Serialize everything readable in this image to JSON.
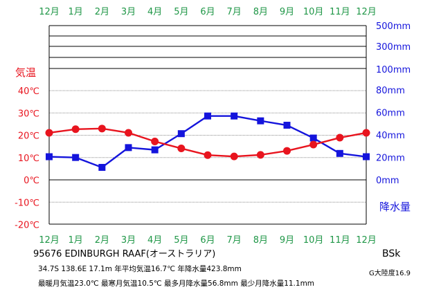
{
  "chart_data": {
    "type": "line",
    "months": [
      "12月",
      "1月",
      "2月",
      "3月",
      "4月",
      "5月",
      "6月",
      "7月",
      "8月",
      "9月",
      "10月",
      "11月",
      "12月"
    ],
    "left_axis": {
      "title": "気温",
      "ticks": [
        "40℃",
        "30℃",
        "20℃",
        "10℃",
        "0℃",
        "-10℃",
        "-20℃"
      ],
      "ylim": [
        -20,
        40
      ]
    },
    "right_axis": {
      "title": "降水量",
      "linear_ticks": [
        "80mm",
        "60mm",
        "40mm",
        "20mm",
        "0mm"
      ],
      "linear_range": [
        0,
        80
      ],
      "compressed_ticks": [
        "500mm",
        "300mm",
        "100mm"
      ]
    },
    "series": [
      {
        "name": "気温",
        "color": "#e8141e",
        "marker": "circle",
        "axis": "left",
        "values": [
          21.1,
          22.7,
          23.0,
          21.1,
          17.2,
          14.1,
          11.1,
          10.5,
          11.2,
          13.0,
          15.8,
          18.9,
          21.1
        ]
      },
      {
        "name": "降水量",
        "color": "#1414dc",
        "marker": "square",
        "axis": "right",
        "values": [
          20.6,
          19.9,
          11.1,
          28.7,
          26.7,
          41.1,
          56.8,
          56.8,
          52.5,
          48.6,
          37.2,
          23.5,
          20.6
        ]
      }
    ]
  },
  "colors": {
    "month": "#1e9646",
    "temp": "#e8141e",
    "precip": "#1414dc"
  },
  "info": {
    "station": "95676  EDINBURGH RAAF(オーストラリア)",
    "line1": "34.7S  138.6E  17.1m  年平均気温16.7℃  年降水量423.8mm",
    "line2": "最暖月気温23.0℃ 最寒月気温10.5℃ 最多月降水量56.8mm 最少月降水量11.1mm",
    "climate": "BSk",
    "continentality": "G大陸度16.9"
  }
}
